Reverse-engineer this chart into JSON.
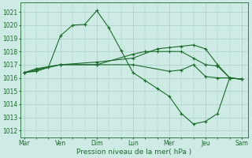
{
  "background_color": "#ceeae4",
  "grid_color": "#a8cec8",
  "line_color": "#1a6b2a",
  "marker_color": "#1a6b2a",
  "ylabel_ticks": [
    1012,
    1013,
    1014,
    1015,
    1016,
    1017,
    1018,
    1019,
    1020,
    1021
  ],
  "ylim": [
    1011.5,
    1021.7
  ],
  "xlabel": "Pression niveau de la mer( hPa )",
  "xlabel_color": "#1a6b2a",
  "day_labels": [
    "Mar",
    "Ven",
    "Dim",
    "Lun",
    "Mer",
    "Jeu",
    "Sam"
  ],
  "day_positions": [
    0,
    3,
    6,
    9,
    12,
    15,
    18
  ],
  "xlim": [
    -0.3,
    18.5
  ],
  "series": [
    {
      "x": [
        0,
        1,
        2,
        3,
        4,
        5,
        6,
        7,
        8,
        9,
        10,
        11,
        12,
        13,
        14,
        15,
        16,
        17,
        18
      ],
      "y": [
        1016.4,
        1016.5,
        1016.8,
        1019.2,
        1020.0,
        1020.05,
        1021.1,
        1019.8,
        1018.1,
        1016.4,
        1015.8,
        1015.2,
        1014.6,
        1013.3,
        1012.5,
        1012.7,
        1013.3,
        1016.0,
        1015.9
      ]
    },
    {
      "x": [
        0,
        1,
        3,
        6,
        9,
        10,
        11,
        12,
        13,
        14,
        15,
        16,
        17,
        18
      ],
      "y": [
        1016.4,
        1016.7,
        1017.0,
        1017.0,
        1017.8,
        1018.0,
        1018.0,
        1018.0,
        1018.0,
        1017.5,
        1017.0,
        1016.9,
        1016.0,
        1015.9
      ]
    },
    {
      "x": [
        0,
        3,
        6,
        9,
        11,
        12,
        13,
        14,
        15,
        16,
        17,
        18
      ],
      "y": [
        1016.4,
        1017.0,
        1017.2,
        1017.5,
        1018.2,
        1018.3,
        1018.4,
        1018.5,
        1018.2,
        1017.0,
        1016.0,
        1015.9
      ]
    },
    {
      "x": [
        0,
        3,
        6,
        9,
        12,
        13,
        14,
        15,
        16,
        17,
        18
      ],
      "y": [
        1016.4,
        1017.0,
        1017.0,
        1017.0,
        1016.5,
        1016.6,
        1017.0,
        1016.1,
        1016.0,
        1016.0,
        1015.9
      ]
    }
  ]
}
